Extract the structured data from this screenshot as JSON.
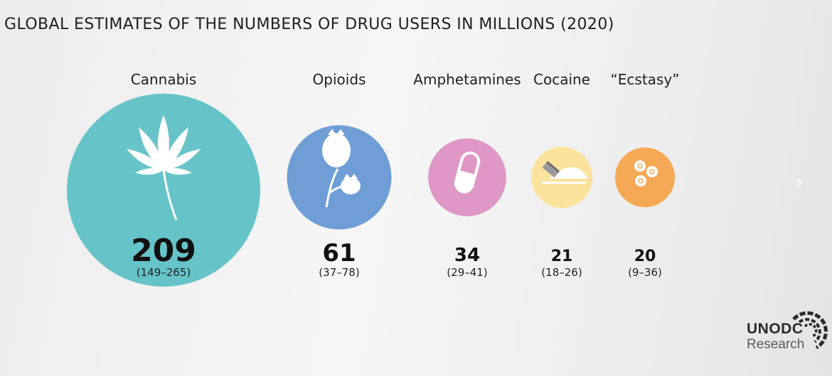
{
  "title": "GLOBAL ESTIMATES OF THE NUMBERS OF DRUG USERS IN MILLIONS (2020)",
  "logo": {
    "line1": "UNODC",
    "line2": "Research"
  },
  "nav": {
    "next_icon": "chevron-right-icon",
    "next_glyph": "›"
  },
  "colors": {
    "cannabis": "#66c4c9",
    "opioids": "#6f9ed6",
    "amphetamines": "#de97c6",
    "cocaine": "#fce39d",
    "ecstasy": "#f6a955"
  },
  "chart_data": {
    "type": "bubble",
    "title": "GLOBAL ESTIMATES OF THE NUMBERS OF DRUG USERS IN MILLIONS (2020)",
    "unit": "millions",
    "year": 2020,
    "categories": [
      "Cannabis",
      "Opioids",
      "Amphetamines",
      "Cocaine",
      "“Ecstasy”"
    ],
    "values": [
      209,
      61,
      34,
      21,
      20
    ],
    "value_labels": [
      "209",
      "61",
      "34",
      "21",
      "20"
    ],
    "ranges": [
      "(149–265)",
      "(37–78)",
      "(29–41)",
      "(18–26)",
      "(9–36)"
    ],
    "range_low": [
      149,
      37,
      29,
      18,
      9
    ],
    "range_high": [
      265,
      78,
      41,
      26,
      36
    ],
    "icons": [
      "cannabis-leaf-icon",
      "poppy-icon",
      "capsule-icon",
      "cocaine-razor-icon",
      "ecstasy-pills-icon"
    ],
    "colors": [
      "#66c4c9",
      "#6f9ed6",
      "#de97c6",
      "#fce39d",
      "#f6a955"
    ]
  }
}
